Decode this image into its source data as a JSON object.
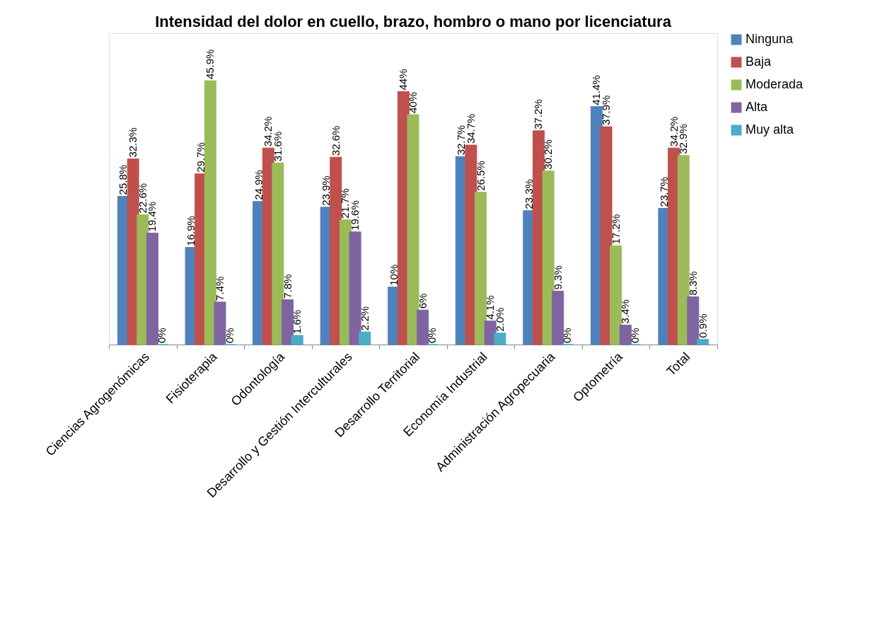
{
  "chart_data": {
    "type": "bar",
    "title": "Intensidad del dolor en cuello, brazo, hombro o mano por licenciatura",
    "categories": [
      "Ciencias Agrogenómicas",
      "Fisioterapia",
      "Odontología",
      "Desarrollo y Gestión Interculturales",
      "Desarrollo Territorial",
      "Economía Industrial",
      "Administración Agropecuaria",
      "Optometría",
      "Total"
    ],
    "series": [
      {
        "name": "Ninguna",
        "color": "#4f81bd",
        "values": [
          25.8,
          16.9,
          24.9,
          23.9,
          10,
          32.7,
          23.3,
          41.4,
          23.7
        ],
        "value_labels": [
          "25.8%",
          "16.9%",
          "24.9%",
          "23.9%",
          "10%",
          "32.7%",
          "23.3%",
          "41.4%",
          "23.7%"
        ]
      },
      {
        "name": "Baja",
        "color": "#c0504d",
        "values": [
          32.3,
          29.7,
          34.2,
          32.6,
          44,
          34.7,
          37.2,
          37.9,
          34.2
        ],
        "value_labels": [
          "32.3%",
          "29.7%",
          "34.2%",
          "32.6%",
          "44%",
          "34.7%",
          "37.2%",
          "37.9%",
          "34.2%"
        ]
      },
      {
        "name": "Moderada",
        "color": "#9bbb59",
        "values": [
          22.6,
          45.9,
          31.6,
          21.7,
          40,
          26.5,
          30.2,
          17.2,
          32.9
        ],
        "value_labels": [
          "22.6%",
          "45.9%",
          "31.6%",
          "21.7%",
          "40%",
          "26.5%",
          "30.2%",
          "17.2%",
          "32.9%"
        ]
      },
      {
        "name": "Alta",
        "color": "#8064a2",
        "values": [
          19.4,
          7.4,
          7.8,
          19.6,
          6,
          4.1,
          9.3,
          3.4,
          8.3
        ],
        "value_labels": [
          "19.4%",
          "7.4%",
          "7.8%",
          "19.6%",
          "6%",
          "4.1%",
          "9.3%",
          "3.4%",
          "8.3%"
        ]
      },
      {
        "name": "Muy alta",
        "color": "#4bacc6",
        "values": [
          0,
          0,
          1.6,
          2.2,
          0,
          2.0,
          0,
          0,
          0.9
        ],
        "value_labels": [
          "0%",
          "0%",
          "1.6%",
          "2.2%",
          "0%",
          "2.0%",
          "0%",
          "0%",
          "0.9%"
        ]
      }
    ],
    "legend": "right"
  }
}
